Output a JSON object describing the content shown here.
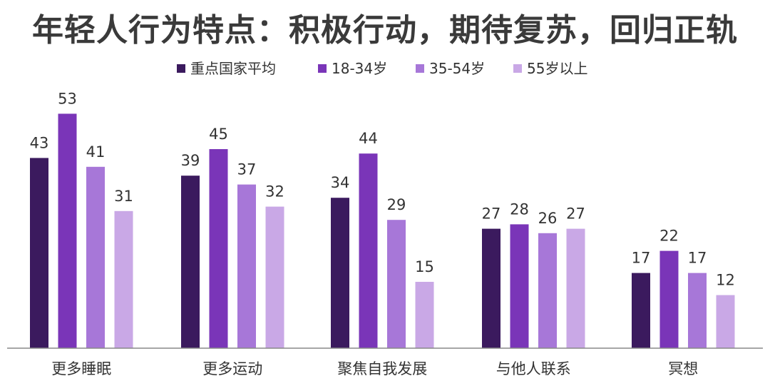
{
  "colors": {
    "series": [
      "#3b1a5e",
      "#7a35b8",
      "#a777d8",
      "#c9a8e6"
    ],
    "axis": "#888888"
  },
  "chart_data": {
    "type": "bar",
    "title": "年轻人行为特点：积极行动，期待复苏，回归正轨",
    "categories": [
      "更多睡眠",
      "更多运动",
      "聚焦自我发展",
      "与他人联系",
      "冥想"
    ],
    "series": [
      {
        "name": "重点国家平均",
        "values": [
          43,
          39,
          34,
          27,
          17
        ]
      },
      {
        "name": "18-34岁",
        "values": [
          53,
          45,
          44,
          28,
          22
        ]
      },
      {
        "name": "35-54岁",
        "values": [
          41,
          37,
          29,
          26,
          17
        ]
      },
      {
        "name": "55岁以上",
        "values": [
          31,
          32,
          15,
          27,
          12
        ]
      }
    ],
    "xlabel": "",
    "ylabel": "",
    "ylim": [
      0,
      60
    ],
    "grid": false,
    "legend_position": "top-center"
  }
}
